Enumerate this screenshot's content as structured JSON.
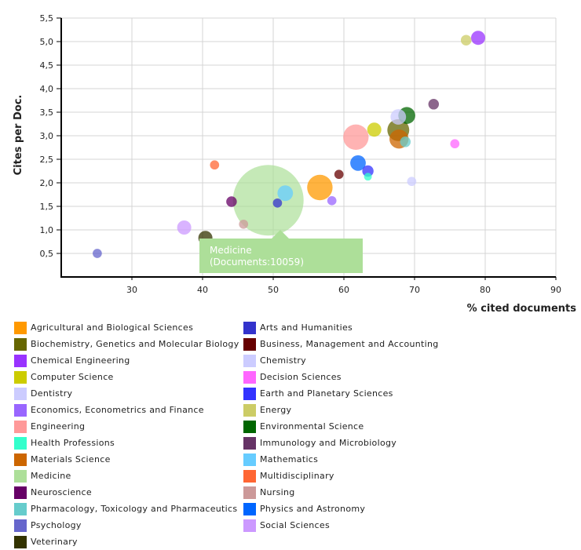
{
  "chart_data": {
    "type": "scatter",
    "subtype": "bubble",
    "title": "",
    "xlabel": "% cited documents",
    "ylabel": "Cites per Doc.",
    "xlim": [
      20,
      90
    ],
    "ylim": [
      0,
      5.5
    ],
    "x_ticks": [
      "30",
      "40",
      "50",
      "60",
      "70",
      "80",
      "90"
    ],
    "x_tick_values": [
      30,
      40,
      50,
      60,
      70,
      80,
      90
    ],
    "y_ticks": [
      "0,5",
      "1,0",
      "1,5",
      "2,0",
      "2,5",
      "3,0",
      "3,5",
      "4,0",
      "4,5",
      "5,0",
      "5,5"
    ],
    "y_tick_values": [
      0.5,
      1.0,
      1.5,
      2.0,
      2.5,
      3.0,
      3.5,
      4.0,
      4.5,
      5.0,
      5.5
    ],
    "grid": true,
    "legend_position": "bottom",
    "series": [
      {
        "name": "Psychology",
        "color": "#6666CC",
        "x": 25.1,
        "y": 0.5,
        "size_rel": 0.13
      },
      {
        "name": "Social Sciences",
        "color": "#CC99FF",
        "x": 37.4,
        "y": 1.05,
        "size_rel": 0.2
      },
      {
        "name": "Veterinary",
        "color": "#333300",
        "x": 40.4,
        "y": 0.83,
        "size_rel": 0.2
      },
      {
        "name": "Multidisciplinary",
        "color": "#FF6633",
        "x": 41.7,
        "y": 2.38,
        "size_rel": 0.13
      },
      {
        "name": "Neuroscience",
        "color": "#660066",
        "x": 44.1,
        "y": 1.6,
        "size_rel": 0.15
      },
      {
        "name": "Nursing",
        "color": "#CC9999",
        "x": 45.8,
        "y": 1.12,
        "size_rel": 0.13
      },
      {
        "name": "Medicine",
        "color": "#ADDF99",
        "x": 49.3,
        "y": 1.63,
        "size_rel": 1.0,
        "documents": 10059
      },
      {
        "name": "Arts and Humanities",
        "color": "#3333CC",
        "x": 50.6,
        "y": 1.57,
        "size_rel": 0.13
      },
      {
        "name": "Mathematics",
        "color": "#66CCFF",
        "x": 51.7,
        "y": 1.78,
        "size_rel": 0.22
      },
      {
        "name": "Agricultural and Biological Sciences",
        "color": "#FF9900",
        "x": 56.6,
        "y": 1.9,
        "size_rel": 0.36
      },
      {
        "name": "Economics, Econometrics and Finance",
        "color": "#9966FF",
        "x": 58.3,
        "y": 1.62,
        "size_rel": 0.13
      },
      {
        "name": "Business, Management and Accounting",
        "color": "#660000",
        "x": 59.3,
        "y": 2.18,
        "size_rel": 0.13
      },
      {
        "name": "Engineering",
        "color": "#FF9999",
        "x": 61.7,
        "y": 2.97,
        "size_rel": 0.36
      },
      {
        "name": "Physics and Astronomy",
        "color": "#0066FF",
        "x": 62.0,
        "y": 2.42,
        "size_rel": 0.22
      },
      {
        "name": "Earth and Planetary Sciences",
        "color": "#3333FF",
        "x": 63.4,
        "y": 2.25,
        "size_rel": 0.16
      },
      {
        "name": "Health Professions",
        "color": "#33FFCC",
        "x": 63.4,
        "y": 2.13,
        "size_rel": 0.11
      },
      {
        "name": "Computer Science",
        "color": "#CCCC00",
        "x": 64.3,
        "y": 3.13,
        "size_rel": 0.2
      },
      {
        "name": "Chemistry",
        "color": "#CCCCFF",
        "x": 67.7,
        "y": 3.4,
        "size_rel": 0.22
      },
      {
        "name": "Biochemistry, Genetics and Molecular Biology",
        "color": "#666600",
        "x": 67.7,
        "y": 3.12,
        "size_rel": 0.31
      },
      {
        "name": "Materials Science",
        "color": "#CC6600",
        "x": 67.8,
        "y": 2.93,
        "size_rel": 0.27
      },
      {
        "name": "Pharmacology, Toxicology and Pharmaceutics",
        "color": "#66CCCC",
        "x": 68.7,
        "y": 2.87,
        "size_rel": 0.15
      },
      {
        "name": "Environmental Science",
        "color": "#006600",
        "x": 68.9,
        "y": 3.43,
        "size_rel": 0.24
      },
      {
        "name": "Dentistry",
        "color": "#CCCCFF",
        "x": 69.6,
        "y": 2.03,
        "size_rel": 0.13
      },
      {
        "name": "Immunology and Microbiology",
        "color": "#663366",
        "x": 72.7,
        "y": 3.67,
        "size_rel": 0.15
      },
      {
        "name": "Decision Sciences",
        "color": "#FF66FF",
        "x": 75.7,
        "y": 2.83,
        "size_rel": 0.13
      },
      {
        "name": "Energy",
        "color": "#CCCC66",
        "x": 77.3,
        "y": 5.03,
        "size_rel": 0.15
      },
      {
        "name": "Chemical Engineering",
        "color": "#9933FF",
        "x": 79.0,
        "y": 5.08,
        "size_rel": 0.2
      }
    ]
  },
  "tooltip": {
    "title": "Medicine",
    "detail": "(Documents:10059)",
    "color": "#ADDF99"
  },
  "legend": {
    "left": [
      {
        "label": "Agricultural and Biological Sciences",
        "color": "#FF9900"
      },
      {
        "label": "Biochemistry, Genetics and Molecular Biology",
        "color": "#666600"
      },
      {
        "label": "Chemical Engineering",
        "color": "#9933FF"
      },
      {
        "label": "Computer Science",
        "color": "#CCCC00"
      },
      {
        "label": "Dentistry",
        "color": "#CCCCFF"
      },
      {
        "label": "Economics, Econometrics and Finance",
        "color": "#9966FF"
      },
      {
        "label": "Engineering",
        "color": "#FF9999"
      },
      {
        "label": "Health Professions",
        "color": "#33FFCC"
      },
      {
        "label": "Materials Science",
        "color": "#CC6600"
      },
      {
        "label": "Medicine",
        "color": "#ADDF99"
      },
      {
        "label": "Neuroscience",
        "color": "#660066"
      },
      {
        "label": "Pharmacology, Toxicology and Pharmaceutics",
        "color": "#66CCCC"
      },
      {
        "label": "Psychology",
        "color": "#6666CC"
      },
      {
        "label": "Veterinary",
        "color": "#333300"
      }
    ],
    "right": [
      {
        "label": "Arts and Humanities",
        "color": "#3333CC"
      },
      {
        "label": "Business, Management and Accounting",
        "color": "#660000"
      },
      {
        "label": "Chemistry",
        "color": "#CCCCFF"
      },
      {
        "label": "Decision Sciences",
        "color": "#FF66FF"
      },
      {
        "label": "Earth and Planetary Sciences",
        "color": "#3333FF"
      },
      {
        "label": "Energy",
        "color": "#CCCC66"
      },
      {
        "label": "Environmental Science",
        "color": "#006600"
      },
      {
        "label": "Immunology and Microbiology",
        "color": "#663366"
      },
      {
        "label": "Mathematics",
        "color": "#66CCFF"
      },
      {
        "label": "Multidisciplinary",
        "color": "#FF6633"
      },
      {
        "label": "Nursing",
        "color": "#CC9999"
      },
      {
        "label": "Physics and Astronomy",
        "color": "#0066FF"
      },
      {
        "label": "Social Sciences",
        "color": "#CC99FF"
      }
    ]
  }
}
